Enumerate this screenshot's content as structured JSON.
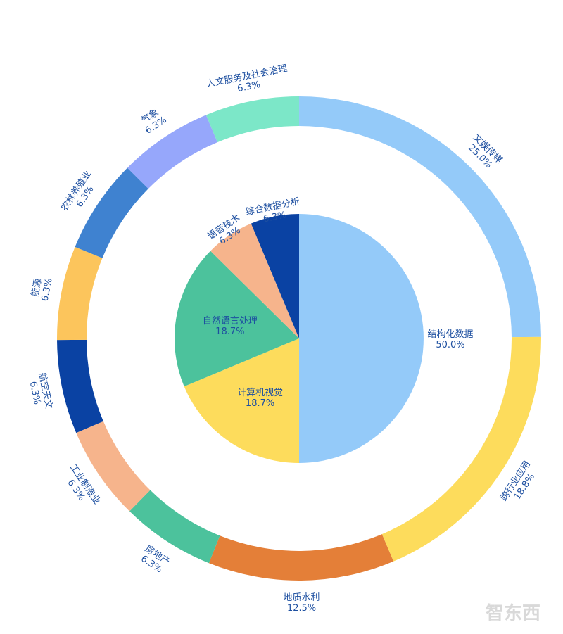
{
  "chart_data": [
    {
      "type": "pie",
      "ring": "inner",
      "slices": [
        {
          "label": "结构化数据",
          "value": 50.0,
          "percent": "50.0%",
          "color": "#94caf9"
        },
        {
          "label": "计算机视觉",
          "value": 18.7,
          "percent": "18.7%",
          "color": "#fddc5c"
        },
        {
          "label": "自然语言处理",
          "value": 18.7,
          "percent": "18.7%",
          "color": "#4cc29c"
        },
        {
          "label": "语音技术",
          "value": 6.3,
          "percent": "6.3%",
          "color": "#f6b48c"
        },
        {
          "label": "综合数据分析",
          "value": 6.3,
          "percent": "6.3%",
          "color": "#0a42a3"
        }
      ]
    },
    {
      "type": "pie",
      "ring": "outer",
      "slices": [
        {
          "label": "文娱传媒",
          "value": 25.0,
          "percent": "25.0%",
          "color": "#94caf9"
        },
        {
          "label": "跨行业应用",
          "value": 18.8,
          "percent": "18.8%",
          "color": "#fddc5c"
        },
        {
          "label": "地质水利",
          "value": 12.5,
          "percent": "12.5%",
          "color": "#e47f38"
        },
        {
          "label": "房地产",
          "value": 6.3,
          "percent": "6.3%",
          "color": "#4cc29c"
        },
        {
          "label": "工业制造业",
          "value": 6.3,
          "percent": "6.3%",
          "color": "#f6b48c"
        },
        {
          "label": "航空天文",
          "value": 6.3,
          "percent": "6.3%",
          "color": "#0a42a3"
        },
        {
          "label": "能源",
          "value": 6.3,
          "percent": "6.3%",
          "color": "#fcc55c"
        },
        {
          "label": "农林养殖业",
          "value": 6.3,
          "percent": "6.3%",
          "color": "#3f82d0"
        },
        {
          "label": "气象",
          "value": 6.3,
          "percent": "6.3%",
          "color": "#96a7fb"
        },
        {
          "label": "人文服务及社会治理",
          "value": 6.3,
          "percent": "6.3%",
          "color": "#7ce7c8"
        }
      ]
    }
  ],
  "watermark": "智东西"
}
